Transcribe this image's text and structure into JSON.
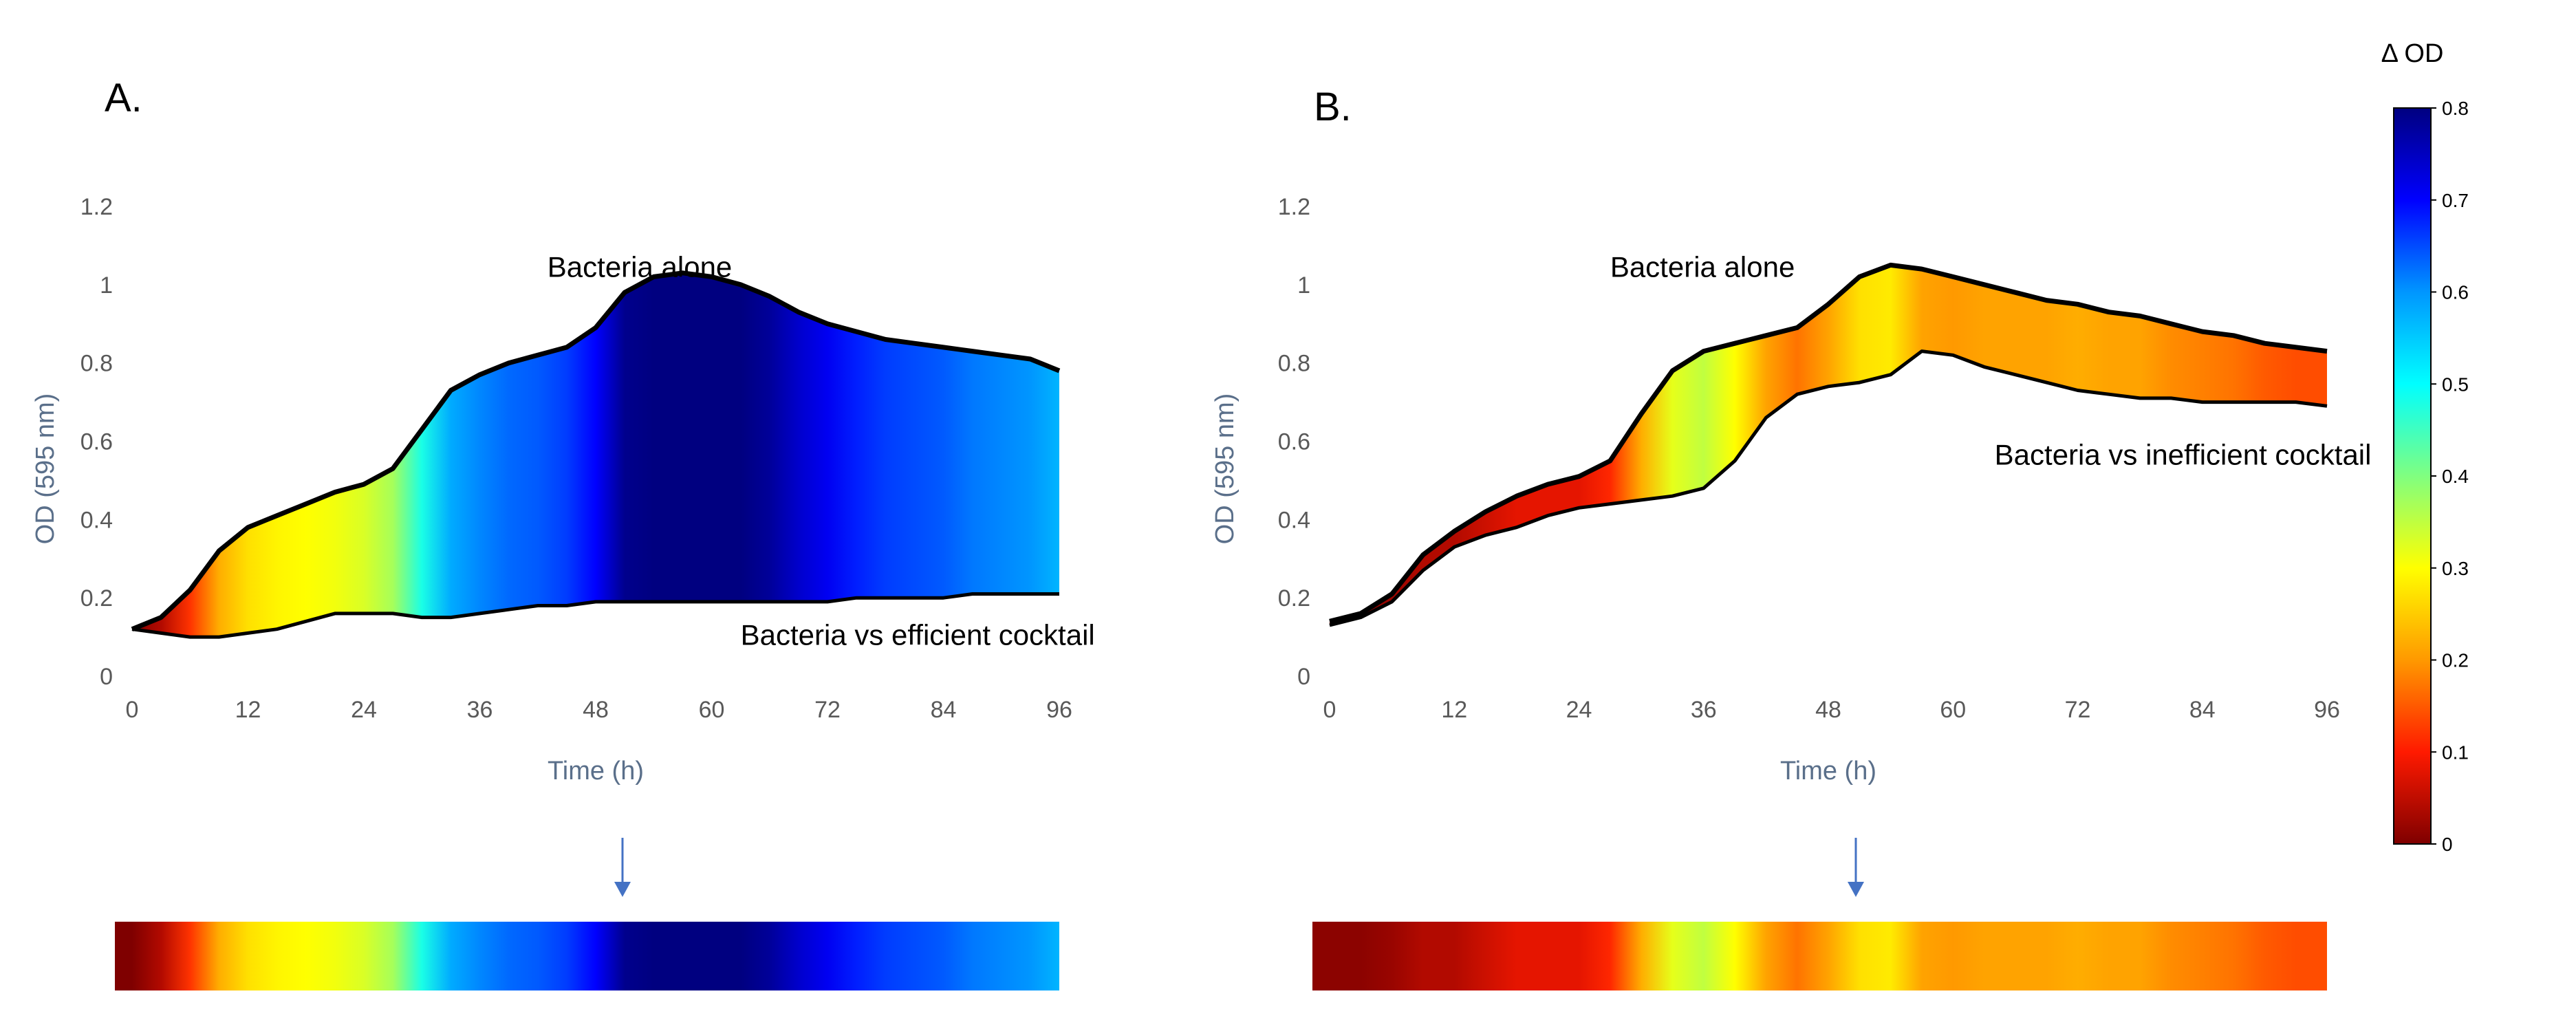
{
  "colormap": {
    "title": "Δ OD",
    "ticks": [
      "0",
      "0.1",
      "0.2",
      "0.3",
      "0.4",
      "0.5",
      "0.6",
      "0.7",
      "0.8"
    ],
    "range": [
      0,
      0.8
    ],
    "stops": [
      {
        "v": 0.0,
        "c": "#7f0000"
      },
      {
        "v": 0.1,
        "c": "#ff1a00"
      },
      {
        "v": 0.2,
        "c": "#ff9900"
      },
      {
        "v": 0.3,
        "c": "#ffff00"
      },
      {
        "v": 0.4,
        "c": "#80ff80"
      },
      {
        "v": 0.5,
        "c": "#00ffff"
      },
      {
        "v": 0.6,
        "c": "#0096ff"
      },
      {
        "v": 0.7,
        "c": "#0000ff"
      },
      {
        "v": 0.8,
        "c": "#000080"
      }
    ]
  },
  "chart_data": [
    {
      "type": "area",
      "panel": "A.",
      "xlabel": "Time (h)",
      "ylabel": "OD (595 nm)",
      "xlim": [
        0,
        96
      ],
      "ylim": [
        0,
        1.2
      ],
      "x_ticks": [
        "0",
        "12",
        "24",
        "36",
        "48",
        "60",
        "72",
        "84",
        "96"
      ],
      "y_ticks": [
        "0",
        "0.2",
        "0.4",
        "0.6",
        "0.8",
        "1",
        "1.2"
      ],
      "series": [
        {
          "name": "Bacteria alone",
          "x": [
            0,
            3,
            6,
            9,
            12,
            15,
            18,
            21,
            24,
            27,
            30,
            33,
            36,
            39,
            42,
            45,
            48,
            51,
            54,
            57,
            60,
            63,
            66,
            69,
            72,
            75,
            78,
            81,
            84,
            87,
            90,
            93,
            96
          ],
          "y": [
            0.12,
            0.15,
            0.22,
            0.32,
            0.38,
            0.41,
            0.44,
            0.47,
            0.49,
            0.53,
            0.63,
            0.73,
            0.77,
            0.8,
            0.82,
            0.84,
            0.89,
            0.98,
            1.02,
            1.03,
            1.02,
            1.0,
            0.97,
            0.93,
            0.9,
            0.88,
            0.86,
            0.85,
            0.84,
            0.83,
            0.82,
            0.81,
            0.78
          ]
        },
        {
          "name": "Bacteria vs efficient cocktail",
          "x": [
            0,
            3,
            6,
            9,
            12,
            15,
            18,
            21,
            24,
            27,
            30,
            33,
            36,
            39,
            42,
            45,
            48,
            51,
            54,
            57,
            60,
            63,
            66,
            69,
            72,
            75,
            78,
            81,
            84,
            87,
            90,
            93,
            96
          ],
          "y": [
            0.12,
            0.11,
            0.1,
            0.1,
            0.11,
            0.12,
            0.14,
            0.16,
            0.16,
            0.16,
            0.15,
            0.15,
            0.16,
            0.17,
            0.18,
            0.18,
            0.19,
            0.19,
            0.19,
            0.19,
            0.19,
            0.19,
            0.19,
            0.19,
            0.19,
            0.2,
            0.2,
            0.2,
            0.2,
            0.21,
            0.21,
            0.21,
            0.21
          ]
        }
      ],
      "annotations": [
        {
          "text": "Bacteria alone",
          "x": 43,
          "y": 1.02
        },
        {
          "text": "Bacteria vs efficient cocktail",
          "x": 63,
          "y": 0.08
        }
      ],
      "delta_strip": true
    },
    {
      "type": "area",
      "panel": "B.",
      "xlabel": "Time (h)",
      "ylabel": "OD (595 nm)",
      "xlim": [
        0,
        96
      ],
      "ylim": [
        0,
        1.2
      ],
      "x_ticks": [
        "0",
        "12",
        "24",
        "36",
        "48",
        "60",
        "72",
        "84",
        "96"
      ],
      "y_ticks": [
        "0",
        "0.2",
        "0.4",
        "0.6",
        "0.8",
        "1",
        "1.2"
      ],
      "series": [
        {
          "name": "Bacteria alone",
          "x": [
            0,
            3,
            6,
            9,
            12,
            15,
            18,
            21,
            24,
            27,
            30,
            33,
            36,
            39,
            42,
            45,
            48,
            51,
            54,
            57,
            60,
            63,
            66,
            69,
            72,
            75,
            78,
            81,
            84,
            87,
            90,
            93,
            96
          ],
          "y": [
            0.14,
            0.16,
            0.21,
            0.31,
            0.37,
            0.42,
            0.46,
            0.49,
            0.51,
            0.55,
            0.67,
            0.78,
            0.83,
            0.85,
            0.87,
            0.89,
            0.95,
            1.02,
            1.05,
            1.04,
            1.02,
            1.0,
            0.98,
            0.96,
            0.95,
            0.93,
            0.92,
            0.9,
            0.88,
            0.87,
            0.85,
            0.84,
            0.83
          ]
        },
        {
          "name": "Bacteria vs inefficient cocktail",
          "x": [
            0,
            3,
            6,
            9,
            12,
            15,
            18,
            21,
            24,
            27,
            30,
            33,
            36,
            39,
            42,
            45,
            48,
            51,
            54,
            57,
            60,
            63,
            66,
            69,
            72,
            75,
            78,
            81,
            84,
            87,
            90,
            93,
            96
          ],
          "y": [
            0.13,
            0.15,
            0.19,
            0.27,
            0.33,
            0.36,
            0.38,
            0.41,
            0.43,
            0.44,
            0.45,
            0.46,
            0.48,
            0.55,
            0.66,
            0.72,
            0.74,
            0.75,
            0.77,
            0.83,
            0.82,
            0.79,
            0.77,
            0.75,
            0.73,
            0.72,
            0.71,
            0.71,
            0.7,
            0.7,
            0.7,
            0.7,
            0.69
          ]
        }
      ],
      "annotations": [
        {
          "text": "Bacteria alone",
          "x": 27,
          "y": 1.02
        },
        {
          "text": "Bacteria vs inefficient cocktail",
          "x": 64,
          "y": 0.54
        }
      ],
      "delta_strip": true
    }
  ]
}
